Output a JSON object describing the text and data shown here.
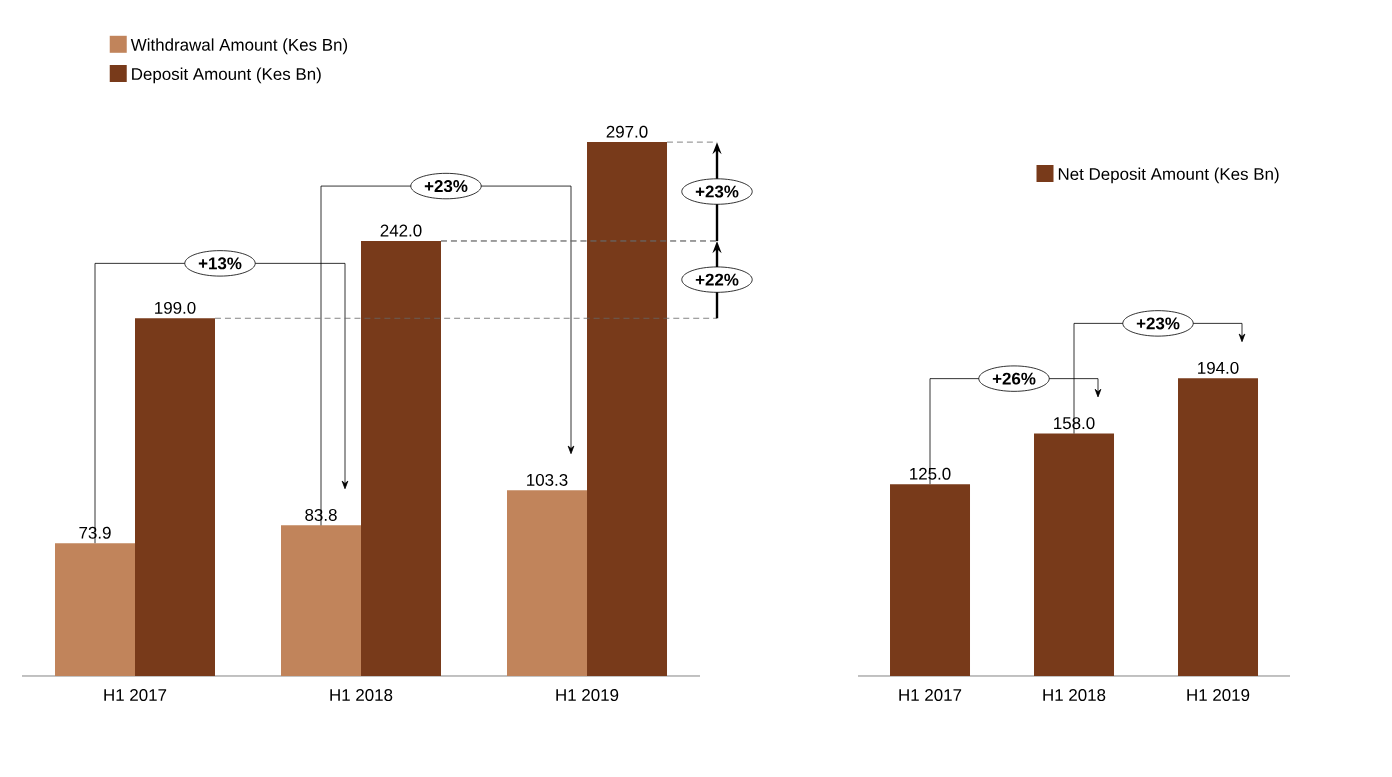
{
  "chart_data": [
    {
      "type": "bar",
      "categories": [
        "H1 2017",
        "H1 2018",
        "H1 2019"
      ],
      "series": [
        {
          "name": "Withdrawal Amount (Kes Bn)",
          "color": "#c1845b",
          "values": [
            73.9,
            83.8,
            103.3
          ],
          "value_labels": [
            "73.9",
            "83.8",
            "103.3"
          ]
        },
        {
          "name": "Deposit Amount (Kes Bn)",
          "color": "#783a1a",
          "values": [
            199.0,
            242.0,
            297.0
          ],
          "value_labels": [
            "199.0",
            "242.0",
            "297.0"
          ]
        }
      ],
      "legend": "top left",
      "annotations": [
        "+13%",
        "+23%",
        "+22%",
        "+23%"
      ]
    },
    {
      "type": "bar",
      "categories": [
        "H1 2017",
        "H1 2018",
        "H1 2019"
      ],
      "series": [
        {
          "name": "Net Deposit Amount (Kes Bn)",
          "color": "#783a1a",
          "values": [
            125.0,
            158.0,
            194.0
          ],
          "value_labels": [
            "125.0",
            "158.0",
            "194.0"
          ]
        }
      ],
      "legend": "top right",
      "annotations": [
        "+26%",
        "+23%"
      ]
    }
  ]
}
